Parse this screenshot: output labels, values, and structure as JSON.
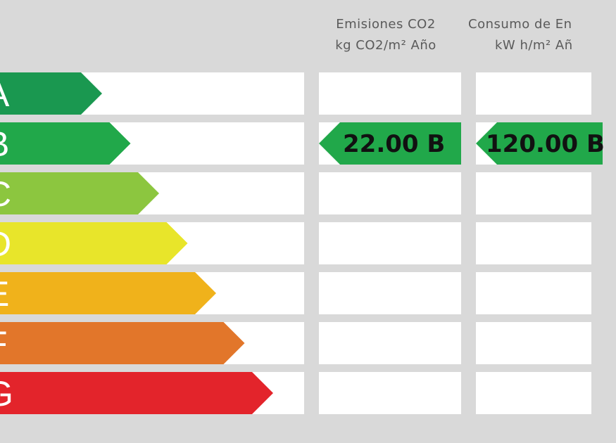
{
  "headers": {
    "co2_line1": "Emisiones CO2",
    "co2_line2": "kg CO2/m² Año",
    "energy_line1": "Consumo de En",
    "energy_line2": "kW h/m² Añ"
  },
  "classes": [
    {
      "letter": "A",
      "color": "#1a9850"
    },
    {
      "letter": "B",
      "color": "#21a84a"
    },
    {
      "letter": "C",
      "color": "#8cc63f"
    },
    {
      "letter": "D",
      "color": "#e8e52a"
    },
    {
      "letter": "E",
      "color": "#f0b21b"
    },
    {
      "letter": "F",
      "color": "#e2762a"
    },
    {
      "letter": "G",
      "color": "#e3242b"
    }
  ],
  "co2_rating": {
    "text": "22.00 B",
    "class": "B",
    "color": "#21a84a"
  },
  "energy_rating": {
    "text": "120.00 B",
    "class": "B",
    "color": "#21a84a"
  },
  "colors": {
    "background": "#d9d9d9",
    "row": "#ffffff",
    "header_text": "#5a5a5a"
  }
}
